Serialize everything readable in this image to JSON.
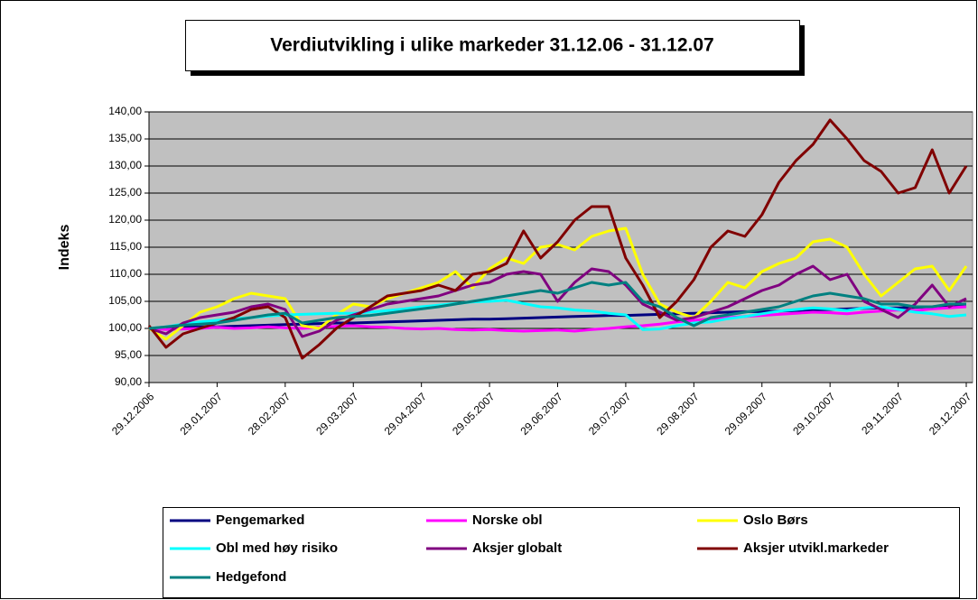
{
  "chart_data": {
    "type": "line",
    "title": "Verdiutvikling i ulike markeder 31.12.06 - 31.12.07",
    "y_label": "Indeks",
    "categories": [
      "29.12.2006",
      null,
      null,
      null,
      "29.01.2007",
      null,
      null,
      null,
      "28.02.2007",
      null,
      null,
      null,
      "29.03.2007",
      null,
      null,
      null,
      "29.04.2007",
      null,
      null,
      null,
      "29.05.2007",
      null,
      null,
      null,
      "29.06.2007",
      null,
      null,
      null,
      "29.07.2007",
      null,
      null,
      null,
      "29.08.2007",
      null,
      null,
      null,
      "29.09.2007",
      null,
      null,
      null,
      "29.10.2007",
      null,
      null,
      null,
      "29.11.2007",
      null,
      null,
      null,
      "29.12.2007"
    ],
    "ylim": [
      90,
      140
    ],
    "yticks": [
      {
        "value": 90,
        "label": "90,00"
      },
      {
        "value": 95,
        "label": "95,00"
      },
      {
        "value": 100,
        "label": "100,00"
      },
      {
        "value": 105,
        "label": "105,00"
      },
      {
        "value": 110,
        "label": "110,00"
      },
      {
        "value": 115,
        "label": "115,00"
      },
      {
        "value": 120,
        "label": "120,00"
      },
      {
        "value": 125,
        "label": "125,00"
      },
      {
        "value": 130,
        "label": "130,00"
      },
      {
        "value": 135,
        "label": "135,00"
      },
      {
        "value": 140,
        "label": "140,00"
      }
    ],
    "grid": true,
    "legend": "bottom",
    "series": [
      {
        "name": "Pengemarked",
        "color": "#000080",
        "values": [
          100.0,
          100.1,
          100.2,
          100.3,
          100.3,
          100.4,
          100.5,
          100.6,
          100.7,
          100.8,
          100.9,
          101.0,
          101.0,
          101.1,
          101.2,
          101.3,
          101.4,
          101.5,
          101.6,
          101.7,
          101.7,
          101.8,
          101.9,
          102.0,
          102.1,
          102.2,
          102.3,
          102.4,
          102.4,
          102.5,
          102.6,
          102.7,
          102.8,
          102.9,
          103.0,
          103.1,
          103.1,
          103.2,
          103.3,
          103.4,
          103.5,
          103.6,
          103.7,
          103.8,
          103.8,
          103.9,
          104.0,
          104.1,
          104.2
        ]
      },
      {
        "name": "Norske obl",
        "color": "#ff00ff",
        "values": [
          100.0,
          99.8,
          99.9,
          100.0,
          100.2,
          100.0,
          100.1,
          100.3,
          100.1,
          100.0,
          100.2,
          100.4,
          100.5,
          100.3,
          100.2,
          100.0,
          99.9,
          100.0,
          99.8,
          99.7,
          99.8,
          99.6,
          99.5,
          99.6,
          99.7,
          99.5,
          99.8,
          100.0,
          100.3,
          100.5,
          100.8,
          101.2,
          101.5,
          101.8,
          102.0,
          102.2,
          102.4,
          102.6,
          102.8,
          103.0,
          102.9,
          102.7,
          103.0,
          103.2,
          103.4,
          103.3,
          103.6,
          103.8,
          104.0
        ]
      },
      {
        "name": "Oslo Børs",
        "color": "#ffff00",
        "values": [
          100.0,
          98.0,
          100.5,
          103.0,
          104.0,
          105.5,
          106.5,
          106.0,
          105.5,
          100.5,
          100.0,
          102.5,
          104.5,
          104.0,
          105.5,
          106.5,
          107.5,
          108.5,
          110.5,
          107.5,
          111.0,
          113.0,
          112.0,
          115.0,
          115.5,
          114.5,
          117.0,
          118.0,
          118.5,
          110.0,
          104.5,
          103.0,
          102.0,
          105.0,
          108.5,
          107.5,
          110.5,
          112.0,
          113.0,
          116.0,
          116.5,
          115.0,
          110.0,
          106.0,
          108.5,
          111.0,
          111.5,
          107.0,
          111.5
        ]
      },
      {
        "name": "Obl med høy risiko",
        "color": "#00ffff",
        "values": [
          100.0,
          100.3,
          100.8,
          101.2,
          101.5,
          101.8,
          102.0,
          102.3,
          102.5,
          102.6,
          102.7,
          102.8,
          102.8,
          103.0,
          103.3,
          103.6,
          104.0,
          104.3,
          104.6,
          104.9,
          105.0,
          105.2,
          104.6,
          104.0,
          103.8,
          103.4,
          103.2,
          102.8,
          102.5,
          99.8,
          99.9,
          100.5,
          101.0,
          101.2,
          101.8,
          102.2,
          102.7,
          103.2,
          103.5,
          103.8,
          103.6,
          103.3,
          103.8,
          104.0,
          103.5,
          103.0,
          102.7,
          102.2,
          102.5
        ]
      },
      {
        "name": "Aksjer globalt",
        "color": "#800080",
        "values": [
          100.0,
          99.0,
          101.0,
          102.0,
          102.5,
          103.0,
          104.0,
          104.5,
          103.5,
          98.5,
          99.5,
          101.5,
          102.5,
          103.5,
          104.5,
          105.0,
          105.5,
          106.0,
          107.0,
          108.0,
          108.5,
          110.0,
          110.5,
          110.0,
          105.0,
          108.5,
          111.0,
          110.5,
          108.0,
          104.5,
          103.0,
          101.5,
          102.0,
          103.0,
          104.0,
          105.5,
          107.0,
          108.0,
          110.0,
          111.5,
          109.0,
          110.0,
          105.0,
          103.5,
          102.0,
          104.5,
          108.0,
          104.0,
          105.5
        ]
      },
      {
        "name": "Aksjer utvikl.markeder",
        "color": "#800000",
        "values": [
          100.5,
          96.5,
          99.0,
          100.0,
          101.0,
          102.0,
          103.5,
          104.0,
          102.0,
          94.5,
          97.0,
          100.0,
          102.0,
          104.0,
          106.0,
          106.5,
          107.0,
          108.0,
          107.0,
          110.0,
          110.5,
          112.0,
          118.0,
          113.0,
          116.0,
          120.0,
          122.5,
          122.5,
          113.0,
          108.0,
          102.0,
          105.0,
          109.0,
          115.0,
          118.0,
          117.0,
          121.0,
          127.0,
          131.0,
          134.0,
          138.5,
          135.0,
          131.0,
          129.0,
          125.0,
          126.0,
          133.0,
          125.0,
          130.0
        ]
      },
      {
        "name": "Hedgefond",
        "color": "#008080",
        "values": [
          100.0,
          100.3,
          100.6,
          100.8,
          101.0,
          101.5,
          102.0,
          102.5,
          102.8,
          101.0,
          101.5,
          102.0,
          102.2,
          102.4,
          102.8,
          103.2,
          103.6,
          104.0,
          104.5,
          105.0,
          105.5,
          106.0,
          106.5,
          107.0,
          106.5,
          107.5,
          108.5,
          108.0,
          108.5,
          105.0,
          104.0,
          102.0,
          100.5,
          102.0,
          102.5,
          103.0,
          103.5,
          104.0,
          105.0,
          106.0,
          106.5,
          106.0,
          105.5,
          104.5,
          104.5,
          104.0,
          104.0,
          104.5,
          104.5
        ]
      }
    ]
  }
}
